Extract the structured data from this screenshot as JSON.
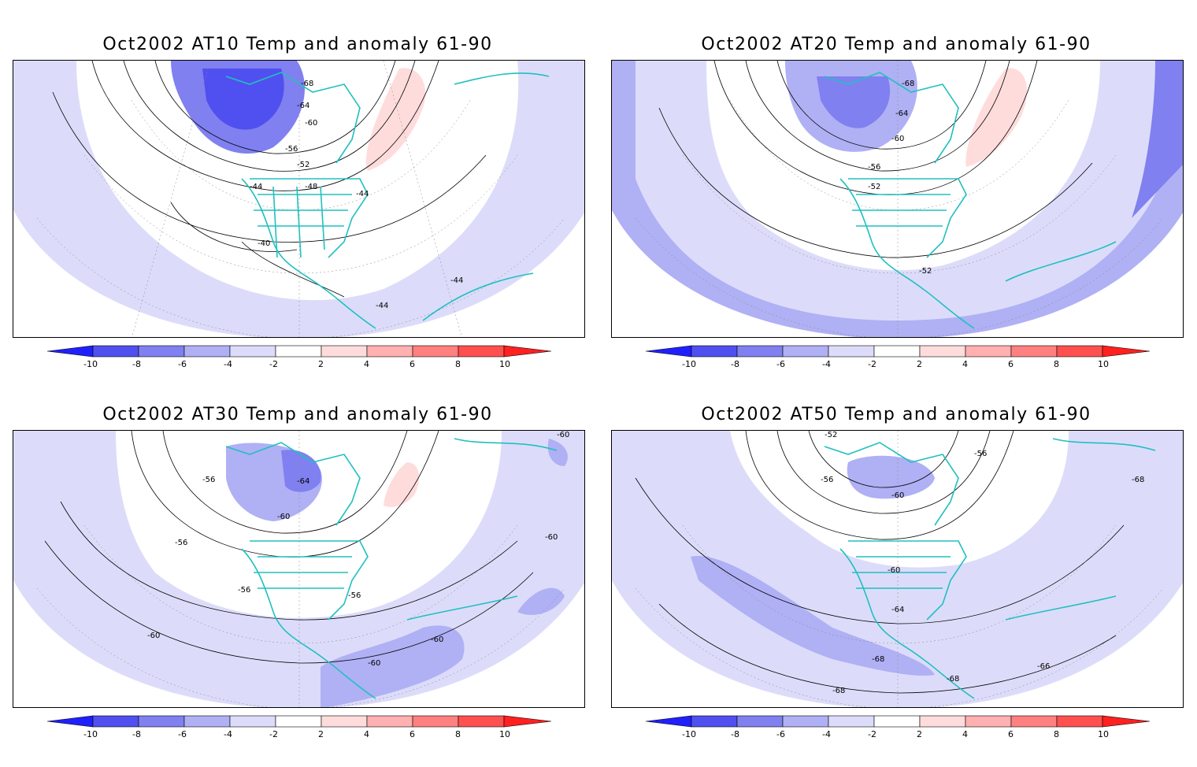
{
  "panels": [
    {
      "title": "Oct2002 AT10 Temp and anomaly 61-90",
      "contour_labels": [
        "-68",
        "-64",
        "-60",
        "-56",
        "-52",
        "-48",
        "-44",
        "-44",
        "-40",
        "-44",
        "-44"
      ]
    },
    {
      "title": "Oct2002 AT20 Temp and anomaly 61-90",
      "contour_labels": [
        "-68",
        "-64",
        "-60",
        "-56",
        "-52",
        "-52"
      ]
    },
    {
      "title": "Oct2002 AT30 Temp and anomaly 61-90",
      "contour_labels": [
        "-60",
        "-56",
        "-64",
        "-60",
        "-56",
        "-56",
        "-60",
        "-56",
        "-60",
        "-60",
        "-60"
      ]
    },
    {
      "title": "Oct2002 AT50 Temp and anomaly 61-90",
      "contour_labels": [
        "-52",
        "-56",
        "-56",
        "-60",
        "-60",
        "-68",
        "-64",
        "-68",
        "-68",
        "-68",
        "-66"
      ]
    }
  ],
  "colorbar": {
    "labels": [
      "-10",
      "-8",
      "-6",
      "-4",
      "-2",
      "2",
      "4",
      "6",
      "8",
      "10"
    ],
    "colors": [
      "#2020ff",
      "#5050f0",
      "#8080f0",
      "#b0b0f5",
      "#dcdcfa",
      "#ffffff",
      "#ffdcdc",
      "#ffb0b0",
      "#ff8080",
      "#ff5050",
      "#ff2020"
    ]
  },
  "colors": {
    "coastline": "#20c0c0",
    "contour": "#000000",
    "frame": "#000000"
  }
}
